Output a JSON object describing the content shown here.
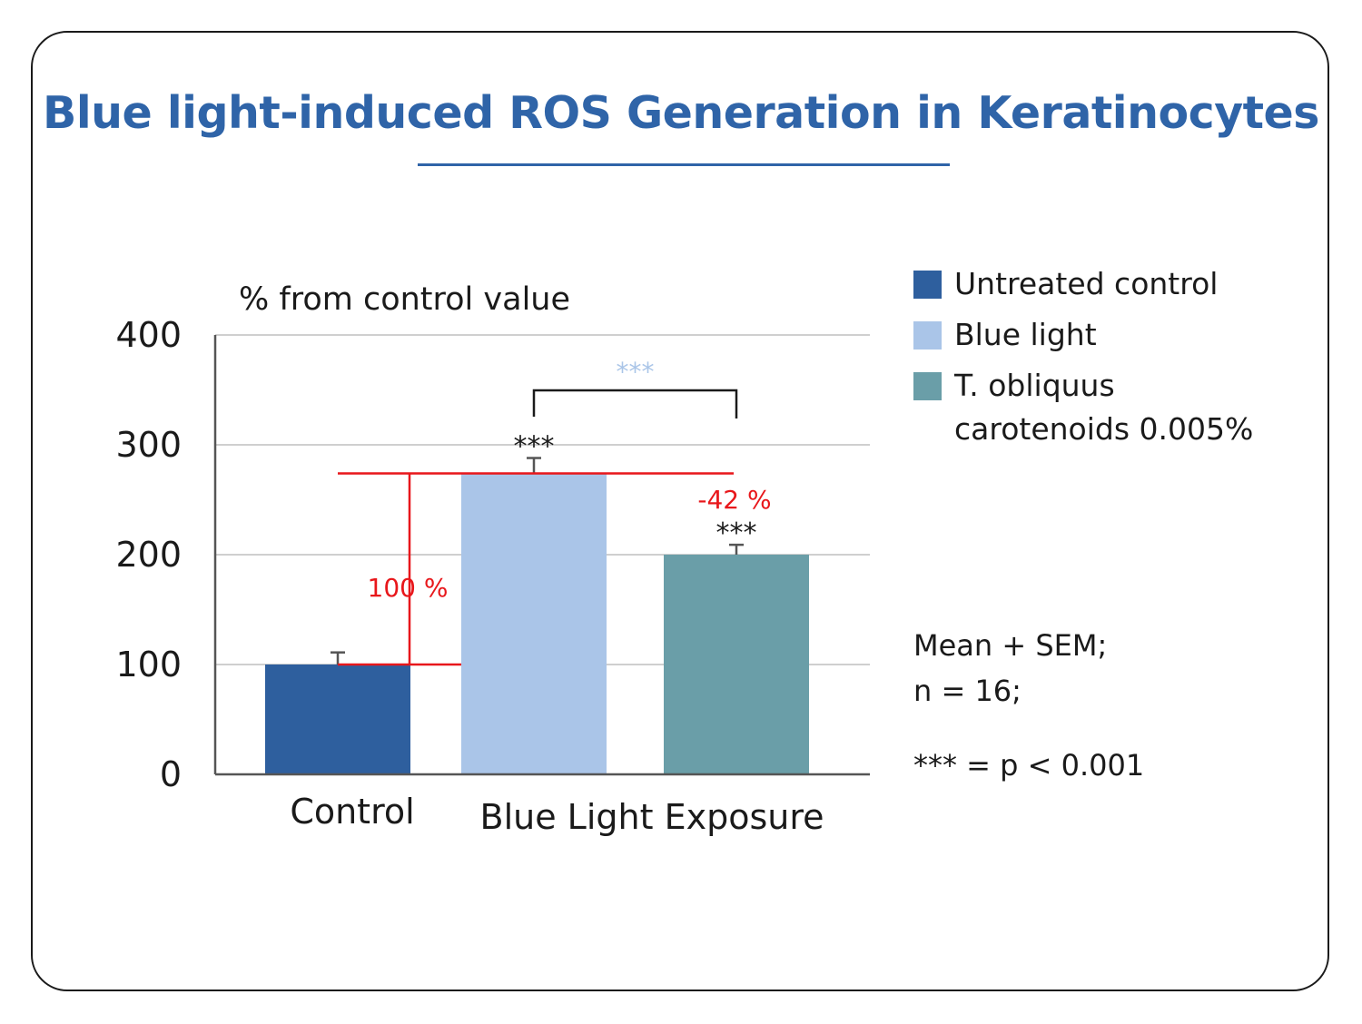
{
  "title": "Blue light-induced ROS Generation in Keratinocytes",
  "chart_data": {
    "type": "bar",
    "ylabel": "% from control value",
    "ylim": [
      0,
      400
    ],
    "yticks": [
      0,
      100,
      200,
      300,
      400
    ],
    "grid": true,
    "categories": [
      "Control",
      "Blue Light Exposure"
    ],
    "bars": [
      {
        "series": "Untreated control",
        "group": "Control",
        "value": 100,
        "error": 11,
        "sig": ""
      },
      {
        "series": "Blue light",
        "group": "Blue Light Exposure",
        "value": 274,
        "error": 14,
        "sig": "***"
      },
      {
        "series": "T. obliquus carotenoids 0.005%",
        "group": "Blue Light Exposure",
        "value": 200,
        "error": 9,
        "sig": "***"
      }
    ],
    "series": [
      {
        "name": "Untreated control",
        "color": "#2e5f9e"
      },
      {
        "name": "Blue light",
        "color": "#aac5e8"
      },
      {
        "name": "T. obliquus carotenoids 0.005%",
        "color": "#6a9ea8"
      }
    ],
    "annotations": {
      "increase_label": "100 %",
      "decrease_label": "-42 %",
      "bracket_sig": "***",
      "annotation_color": "#e8171b",
      "bracket_sig_color": "#aac5e8"
    },
    "legend_position": "right"
  },
  "notes": {
    "line1": "Mean + SEM;",
    "line2": "n = 16;",
    "line3": "*** = p < 0.001"
  }
}
